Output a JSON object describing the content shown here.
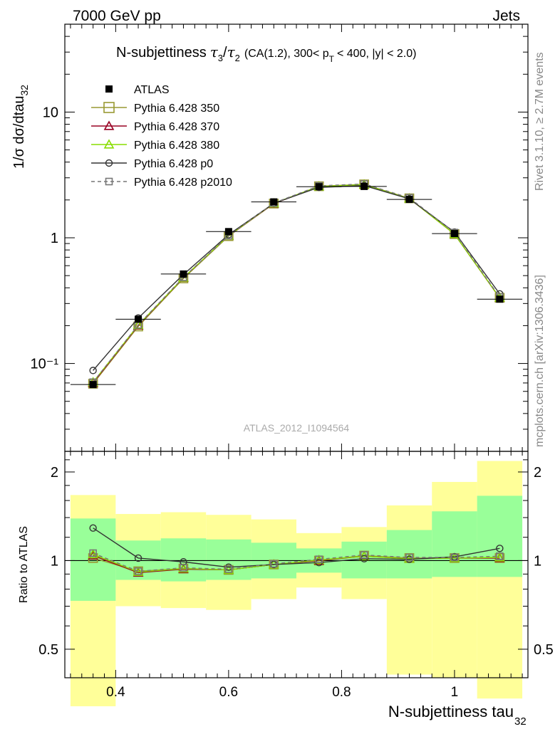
{
  "header": {
    "left": "7000 GeV pp",
    "right": "Jets"
  },
  "side_texts": {
    "rivet": "Rivet 3.1.10, ≥ 2.7M events",
    "mcplots": "mcplots.cern.ch [arXiv:1306.3436]"
  },
  "watermark": "ATLAS_2012_I1094564",
  "title": {
    "main": "N-subjettiness",
    "tau_a": "τ",
    "sub_a": "3",
    "slash": "/",
    "tau_b": "τ",
    "sub_b": "2",
    "rest1": "(CA(1.2), 300< p",
    "sub_t": "T",
    "rest2": "< 400, |y| < 2.0)"
  },
  "ylabel_main": {
    "text": "1/σ dσ/dtau",
    "sub": "32"
  },
  "ylabel_ratio": "Ratio to ATLAS",
  "xlabel": {
    "text": "N-subjettiness tau",
    "sub": "32"
  },
  "colors": {
    "p350": "#999933",
    "p370": "#990022",
    "p380": "#88dd00",
    "p0": "#333333",
    "p2010": "#777777",
    "band_inner": "#99ff99",
    "band_outer": "#ffff99"
  },
  "chart_data": {
    "type": "line",
    "x": [
      0.36,
      0.44,
      0.52,
      0.6,
      0.68,
      0.76,
      0.84,
      0.92,
      1.0,
      1.08
    ],
    "bin_edges": [
      0.32,
      0.4,
      0.48,
      0.56,
      0.64,
      0.72,
      0.8,
      0.88,
      0.96,
      1.04,
      1.12
    ],
    "main": {
      "yscale": "log",
      "ylim": [
        0.02,
        50
      ],
      "xlim": [
        0.31,
        1.13
      ],
      "ytick_labels": [
        "10",
        "1",
        "10⁻¹"
      ],
      "xtick_labels": [
        "0.4",
        "0.6",
        "0.8",
        "1"
      ],
      "series": [
        {
          "name": "ATLAS",
          "marker": "filled-square",
          "values": [
            0.068,
            0.225,
            0.515,
            1.12,
            1.93,
            2.55,
            2.56,
            2.02,
            1.08,
            0.325
          ]
        },
        {
          "name": "Pythia 6.428 350",
          "marker": "open-square",
          "values": [
            0.069,
            0.197,
            0.475,
            1.03,
            1.87,
            2.57,
            2.66,
            2.06,
            1.07,
            0.333
          ]
        },
        {
          "name": "Pythia 6.428 370",
          "marker": "open-triangle",
          "values": [
            0.07,
            0.2,
            0.48,
            1.04,
            1.87,
            2.56,
            2.65,
            2.05,
            1.07,
            0.332
          ]
        },
        {
          "name": "Pythia 6.428 380",
          "marker": "open-triangle",
          "values": [
            0.071,
            0.202,
            0.482,
            1.04,
            1.88,
            2.56,
            2.65,
            2.05,
            1.07,
            0.333
          ]
        },
        {
          "name": "Pythia 6.428 p0",
          "marker": "open-circle",
          "values": [
            0.088,
            0.23,
            0.51,
            1.06,
            1.88,
            2.52,
            2.6,
            2.04,
            1.11,
            0.358
          ]
        },
        {
          "name": "Pythia 6.428 p2010",
          "marker": "open-square-small",
          "values": [
            0.071,
            0.203,
            0.485,
            1.04,
            1.89,
            2.59,
            2.68,
            2.08,
            1.1,
            0.337
          ]
        }
      ]
    },
    "ratio": {
      "yscale": "log",
      "ylim": [
        0.4,
        2.35
      ],
      "ytick_labels": [
        "0.5",
        "1",
        "2"
      ],
      "band_inner": [
        [
          0.73,
          1.39
        ],
        [
          0.86,
          1.17
        ],
        [
          0.85,
          1.19
        ],
        [
          0.86,
          1.18
        ],
        [
          0.87,
          1.15
        ],
        [
          0.91,
          1.1
        ],
        [
          0.87,
          1.16
        ],
        [
          0.87,
          1.27
        ],
        [
          0.88,
          1.47
        ],
        [
          0.88,
          1.66
        ]
      ],
      "band_outer": [
        [
          0.32,
          1.67
        ],
        [
          0.7,
          1.44
        ],
        [
          0.69,
          1.46
        ],
        [
          0.68,
          1.43
        ],
        [
          0.74,
          1.38
        ],
        [
          0.81,
          1.24
        ],
        [
          0.74,
          1.3
        ],
        [
          0.41,
          1.54
        ],
        [
          0.4,
          1.85
        ],
        [
          0.34,
          2.18
        ]
      ],
      "series": [
        {
          "name": "Pythia 6.428 350",
          "values": [
            1.02,
            0.92,
            0.94,
            0.93,
            0.97,
            1.0,
            1.04,
            1.02,
            1.02,
            1.02
          ]
        },
        {
          "name": "Pythia 6.428 370",
          "values": [
            1.04,
            0.91,
            0.935,
            0.93,
            0.97,
            1.0,
            1.035,
            1.015,
            1.02,
            1.02
          ]
        },
        {
          "name": "Pythia 6.428 380",
          "values": [
            1.05,
            0.915,
            0.94,
            0.93,
            0.97,
            1.005,
            1.035,
            1.015,
            1.02,
            1.025
          ]
        },
        {
          "name": "Pythia 6.428 p0",
          "values": [
            1.29,
            1.02,
            0.99,
            0.95,
            0.97,
            0.985,
            1.015,
            1.01,
            1.03,
            1.1
          ]
        },
        {
          "name": "Pythia 6.428 p2010",
          "values": [
            1.06,
            0.92,
            0.945,
            0.935,
            0.975,
            1.01,
            1.045,
            1.025,
            1.025,
            1.035
          ]
        }
      ]
    }
  }
}
